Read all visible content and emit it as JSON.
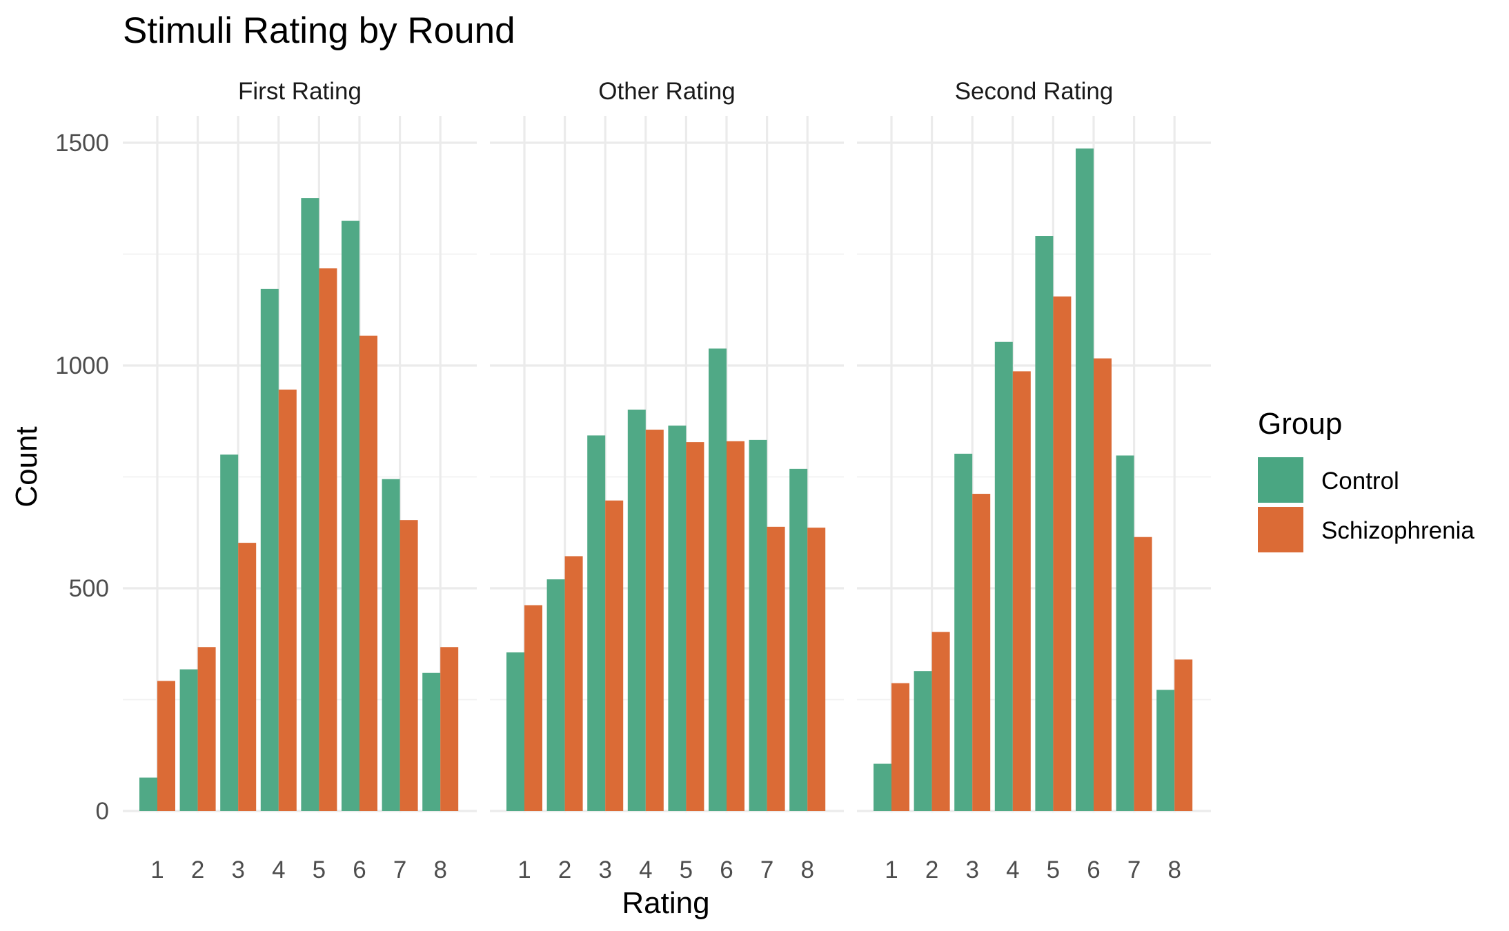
{
  "chart_data": {
    "type": "bar",
    "title": "Stimuli Rating by Round",
    "xlabel": "Rating",
    "ylabel": "Count",
    "ylim": [
      0,
      1500
    ],
    "yticks": [
      0,
      500,
      1000,
      1500
    ],
    "categories": [
      "1",
      "2",
      "3",
      "4",
      "5",
      "6",
      "7",
      "8"
    ],
    "grid": true,
    "legend": {
      "title": "Group",
      "position": "right",
      "entries": [
        "Control",
        "Schizophrenia"
      ]
    },
    "colors": {
      "Control": "#4aa682",
      "Schizophrenia": "#db6b36"
    },
    "facets": [
      {
        "label": "First Rating",
        "series": [
          {
            "name": "Control",
            "values": [
              75,
              318,
              800,
              1172,
              1376,
              1325,
              745,
              310
            ]
          },
          {
            "name": "Schizophrenia",
            "values": [
              292,
              368,
              602,
              946,
              1218,
              1067,
              653,
              368
            ]
          }
        ]
      },
      {
        "label": "Other Rating",
        "series": [
          {
            "name": "Control",
            "values": [
              356,
              520,
              843,
              901,
              865,
              1038,
              833,
              768
            ]
          },
          {
            "name": "Schizophrenia",
            "values": [
              462,
              572,
              697,
              856,
              828,
              830,
              638,
              636
            ]
          }
        ]
      },
      {
        "label": "Second Rating",
        "series": [
          {
            "name": "Control",
            "values": [
              106,
              314,
              802,
              1053,
              1291,
              1487,
              798,
              272
            ]
          },
          {
            "name": "Schizophrenia",
            "values": [
              287,
              402,
              712,
              987,
              1155,
              1016,
              615,
              340
            ]
          }
        ]
      }
    ]
  }
}
